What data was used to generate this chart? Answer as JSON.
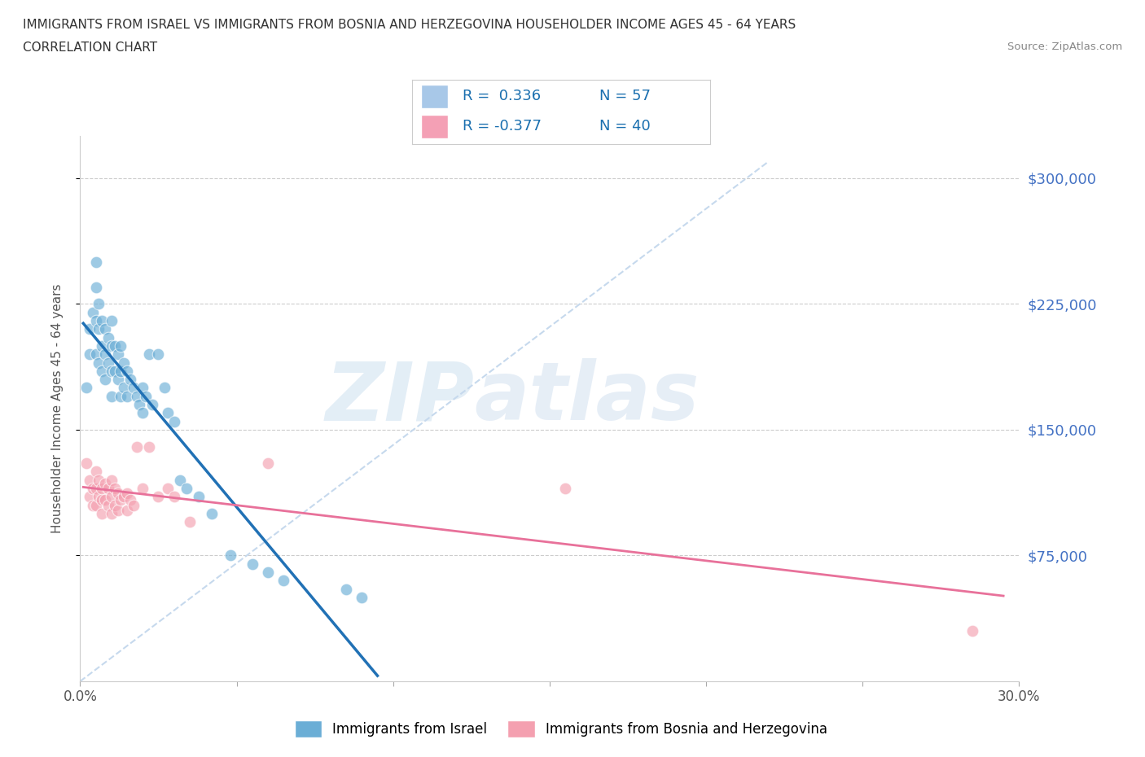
{
  "title_line1": "IMMIGRANTS FROM ISRAEL VS IMMIGRANTS FROM BOSNIA AND HERZEGOVINA HOUSEHOLDER INCOME AGES 45 - 64 YEARS",
  "title_line2": "CORRELATION CHART",
  "source_text": "Source: ZipAtlas.com",
  "ylabel": "Householder Income Ages 45 - 64 years",
  "xlim": [
    0.0,
    0.3
  ],
  "ylim": [
    0,
    325000
  ],
  "yticks": [
    75000,
    150000,
    225000,
    300000
  ],
  "ytick_labels": [
    "$75,000",
    "$150,000",
    "$225,000",
    "$300,000"
  ],
  "xticks": [
    0.0,
    0.05,
    0.1,
    0.15,
    0.2,
    0.25,
    0.3
  ],
  "xtick_labels": [
    "0.0%",
    "",
    "",
    "",
    "",
    "",
    "30.0%"
  ],
  "israel_color": "#6baed6",
  "bosnia_color": "#f4a0b0",
  "israel_line_color": "#2171b5",
  "bosnia_line_color": "#e8719a",
  "diagonal_color": "#c6d9ed",
  "watermark_zip": "ZIP",
  "watermark_atlas": "atlas",
  "israel_R": "0.336",
  "israel_N": "57",
  "bosnia_R": "-0.377",
  "bosnia_N": "40",
  "israel_x": [
    0.002,
    0.003,
    0.003,
    0.004,
    0.005,
    0.005,
    0.005,
    0.005,
    0.006,
    0.006,
    0.006,
    0.007,
    0.007,
    0.007,
    0.008,
    0.008,
    0.008,
    0.009,
    0.009,
    0.01,
    0.01,
    0.01,
    0.01,
    0.011,
    0.011,
    0.012,
    0.012,
    0.013,
    0.013,
    0.013,
    0.014,
    0.014,
    0.015,
    0.015,
    0.016,
    0.017,
    0.018,
    0.019,
    0.02,
    0.02,
    0.021,
    0.022,
    0.023,
    0.025,
    0.027,
    0.028,
    0.03,
    0.032,
    0.034,
    0.038,
    0.042,
    0.048,
    0.055,
    0.06,
    0.065,
    0.085,
    0.09
  ],
  "israel_y": [
    175000,
    210000,
    195000,
    220000,
    235000,
    250000,
    215000,
    195000,
    225000,
    210000,
    190000,
    215000,
    200000,
    185000,
    210000,
    195000,
    180000,
    205000,
    190000,
    215000,
    200000,
    185000,
    170000,
    200000,
    185000,
    195000,
    180000,
    200000,
    185000,
    170000,
    190000,
    175000,
    185000,
    170000,
    180000,
    175000,
    170000,
    165000,
    175000,
    160000,
    170000,
    195000,
    165000,
    195000,
    175000,
    160000,
    155000,
    120000,
    115000,
    110000,
    100000,
    75000,
    70000,
    65000,
    60000,
    55000,
    50000
  ],
  "bosnia_x": [
    0.002,
    0.003,
    0.003,
    0.004,
    0.004,
    0.005,
    0.005,
    0.005,
    0.006,
    0.006,
    0.007,
    0.007,
    0.007,
    0.008,
    0.008,
    0.009,
    0.009,
    0.01,
    0.01,
    0.01,
    0.011,
    0.011,
    0.012,
    0.012,
    0.013,
    0.014,
    0.015,
    0.015,
    0.016,
    0.017,
    0.018,
    0.02,
    0.022,
    0.025,
    0.028,
    0.03,
    0.035,
    0.06,
    0.155,
    0.285
  ],
  "bosnia_y": [
    130000,
    120000,
    110000,
    115000,
    105000,
    125000,
    115000,
    105000,
    120000,
    110000,
    115000,
    108000,
    100000,
    118000,
    108000,
    115000,
    105000,
    120000,
    110000,
    100000,
    115000,
    105000,
    112000,
    102000,
    108000,
    110000,
    112000,
    102000,
    108000,
    105000,
    140000,
    115000,
    140000,
    110000,
    115000,
    110000,
    95000,
    130000,
    115000,
    30000
  ]
}
